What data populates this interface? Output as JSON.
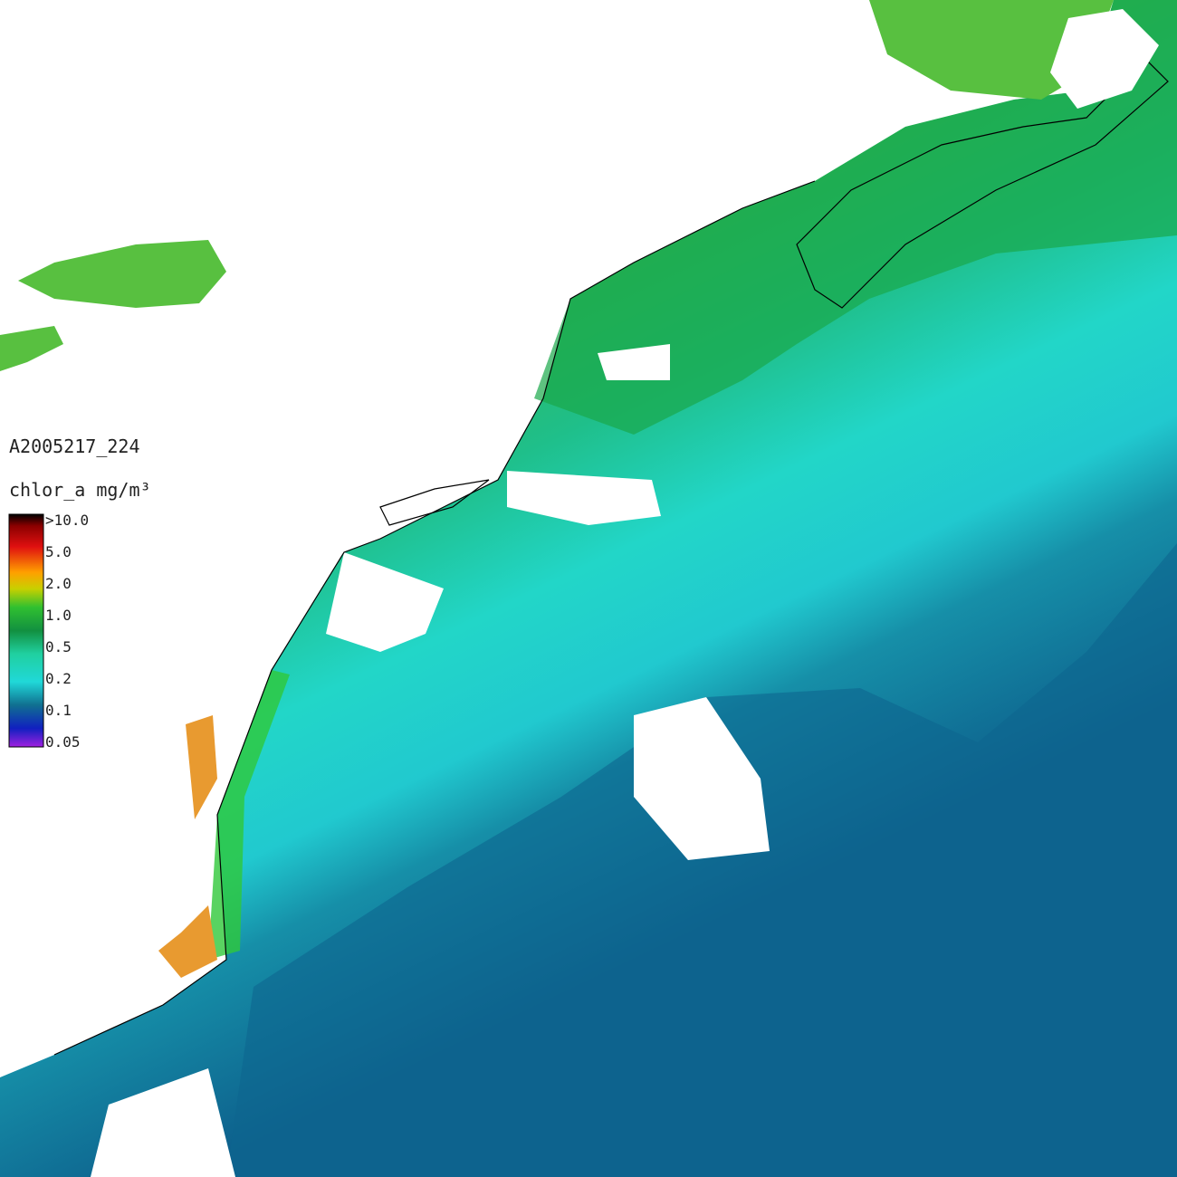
{
  "product_id": "A2005217_224",
  "legend": {
    "title": "chlor_a mg/m³",
    "labels": [
      ">10.0",
      "5.0",
      "2.0",
      "1.0",
      "0.5",
      "0.2",
      "0.1",
      "0.05"
    ]
  }
}
